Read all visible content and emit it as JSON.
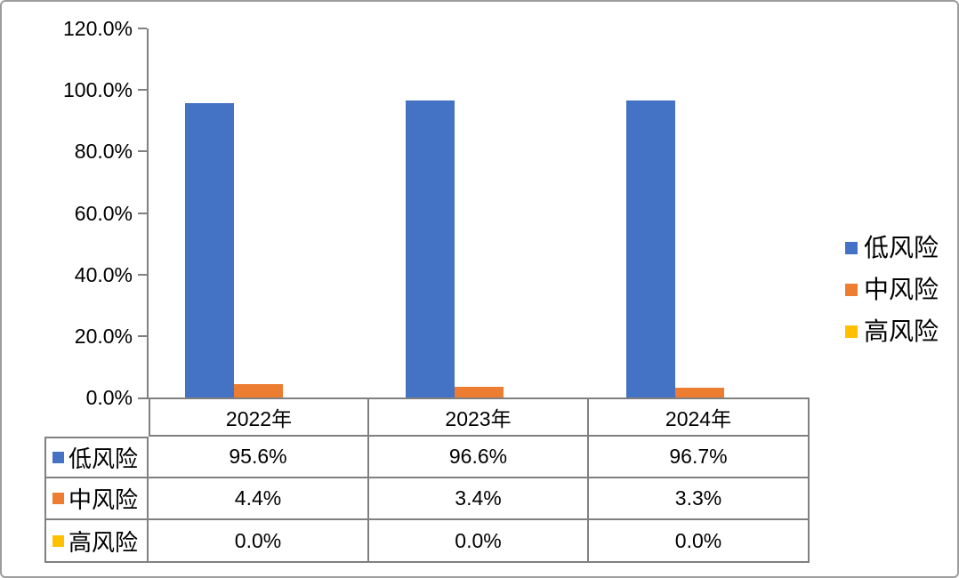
{
  "chart_data": {
    "type": "bar",
    "title": "",
    "xlabel": "",
    "ylabel": "",
    "categories": [
      "2022年",
      "2023年",
      "2024年"
    ],
    "series": [
      {
        "name": "低风险",
        "color": "#4472C4",
        "values": [
          95.6,
          96.6,
          96.7
        ]
      },
      {
        "name": "中风险",
        "color": "#ED7D31",
        "values": [
          4.4,
          3.4,
          3.3
        ]
      },
      {
        "name": "高风险",
        "color": "#FFC000",
        "values": [
          0.0,
          0.0,
          0.0
        ]
      }
    ],
    "ylim": [
      0,
      120
    ],
    "ytick_labels": [
      "120.0%",
      "100.0%",
      "80.0%",
      "60.0%",
      "40.0%",
      "20.0%",
      "0.0%"
    ],
    "grid": false,
    "legend_position": "right",
    "data_table_shown": true
  },
  "data_table": {
    "columns": [
      "2022年",
      "2023年",
      "2024年"
    ],
    "rows": [
      {
        "label": "低风险",
        "color": "#4472C4",
        "values": [
          "95.6%",
          "96.6%",
          "96.7%"
        ]
      },
      {
        "label": "中风险",
        "color": "#ED7D31",
        "values": [
          "4.4%",
          "3.4%",
          "3.3%"
        ]
      },
      {
        "label": "高风险",
        "color": "#FFC000",
        "values": [
          "0.0%",
          "0.0%",
          "0.0%"
        ]
      }
    ]
  },
  "colors": {
    "axis_line": "#808080",
    "table_line": "#808080",
    "frame_border": "#9d9d9d",
    "text": "#000000"
  }
}
